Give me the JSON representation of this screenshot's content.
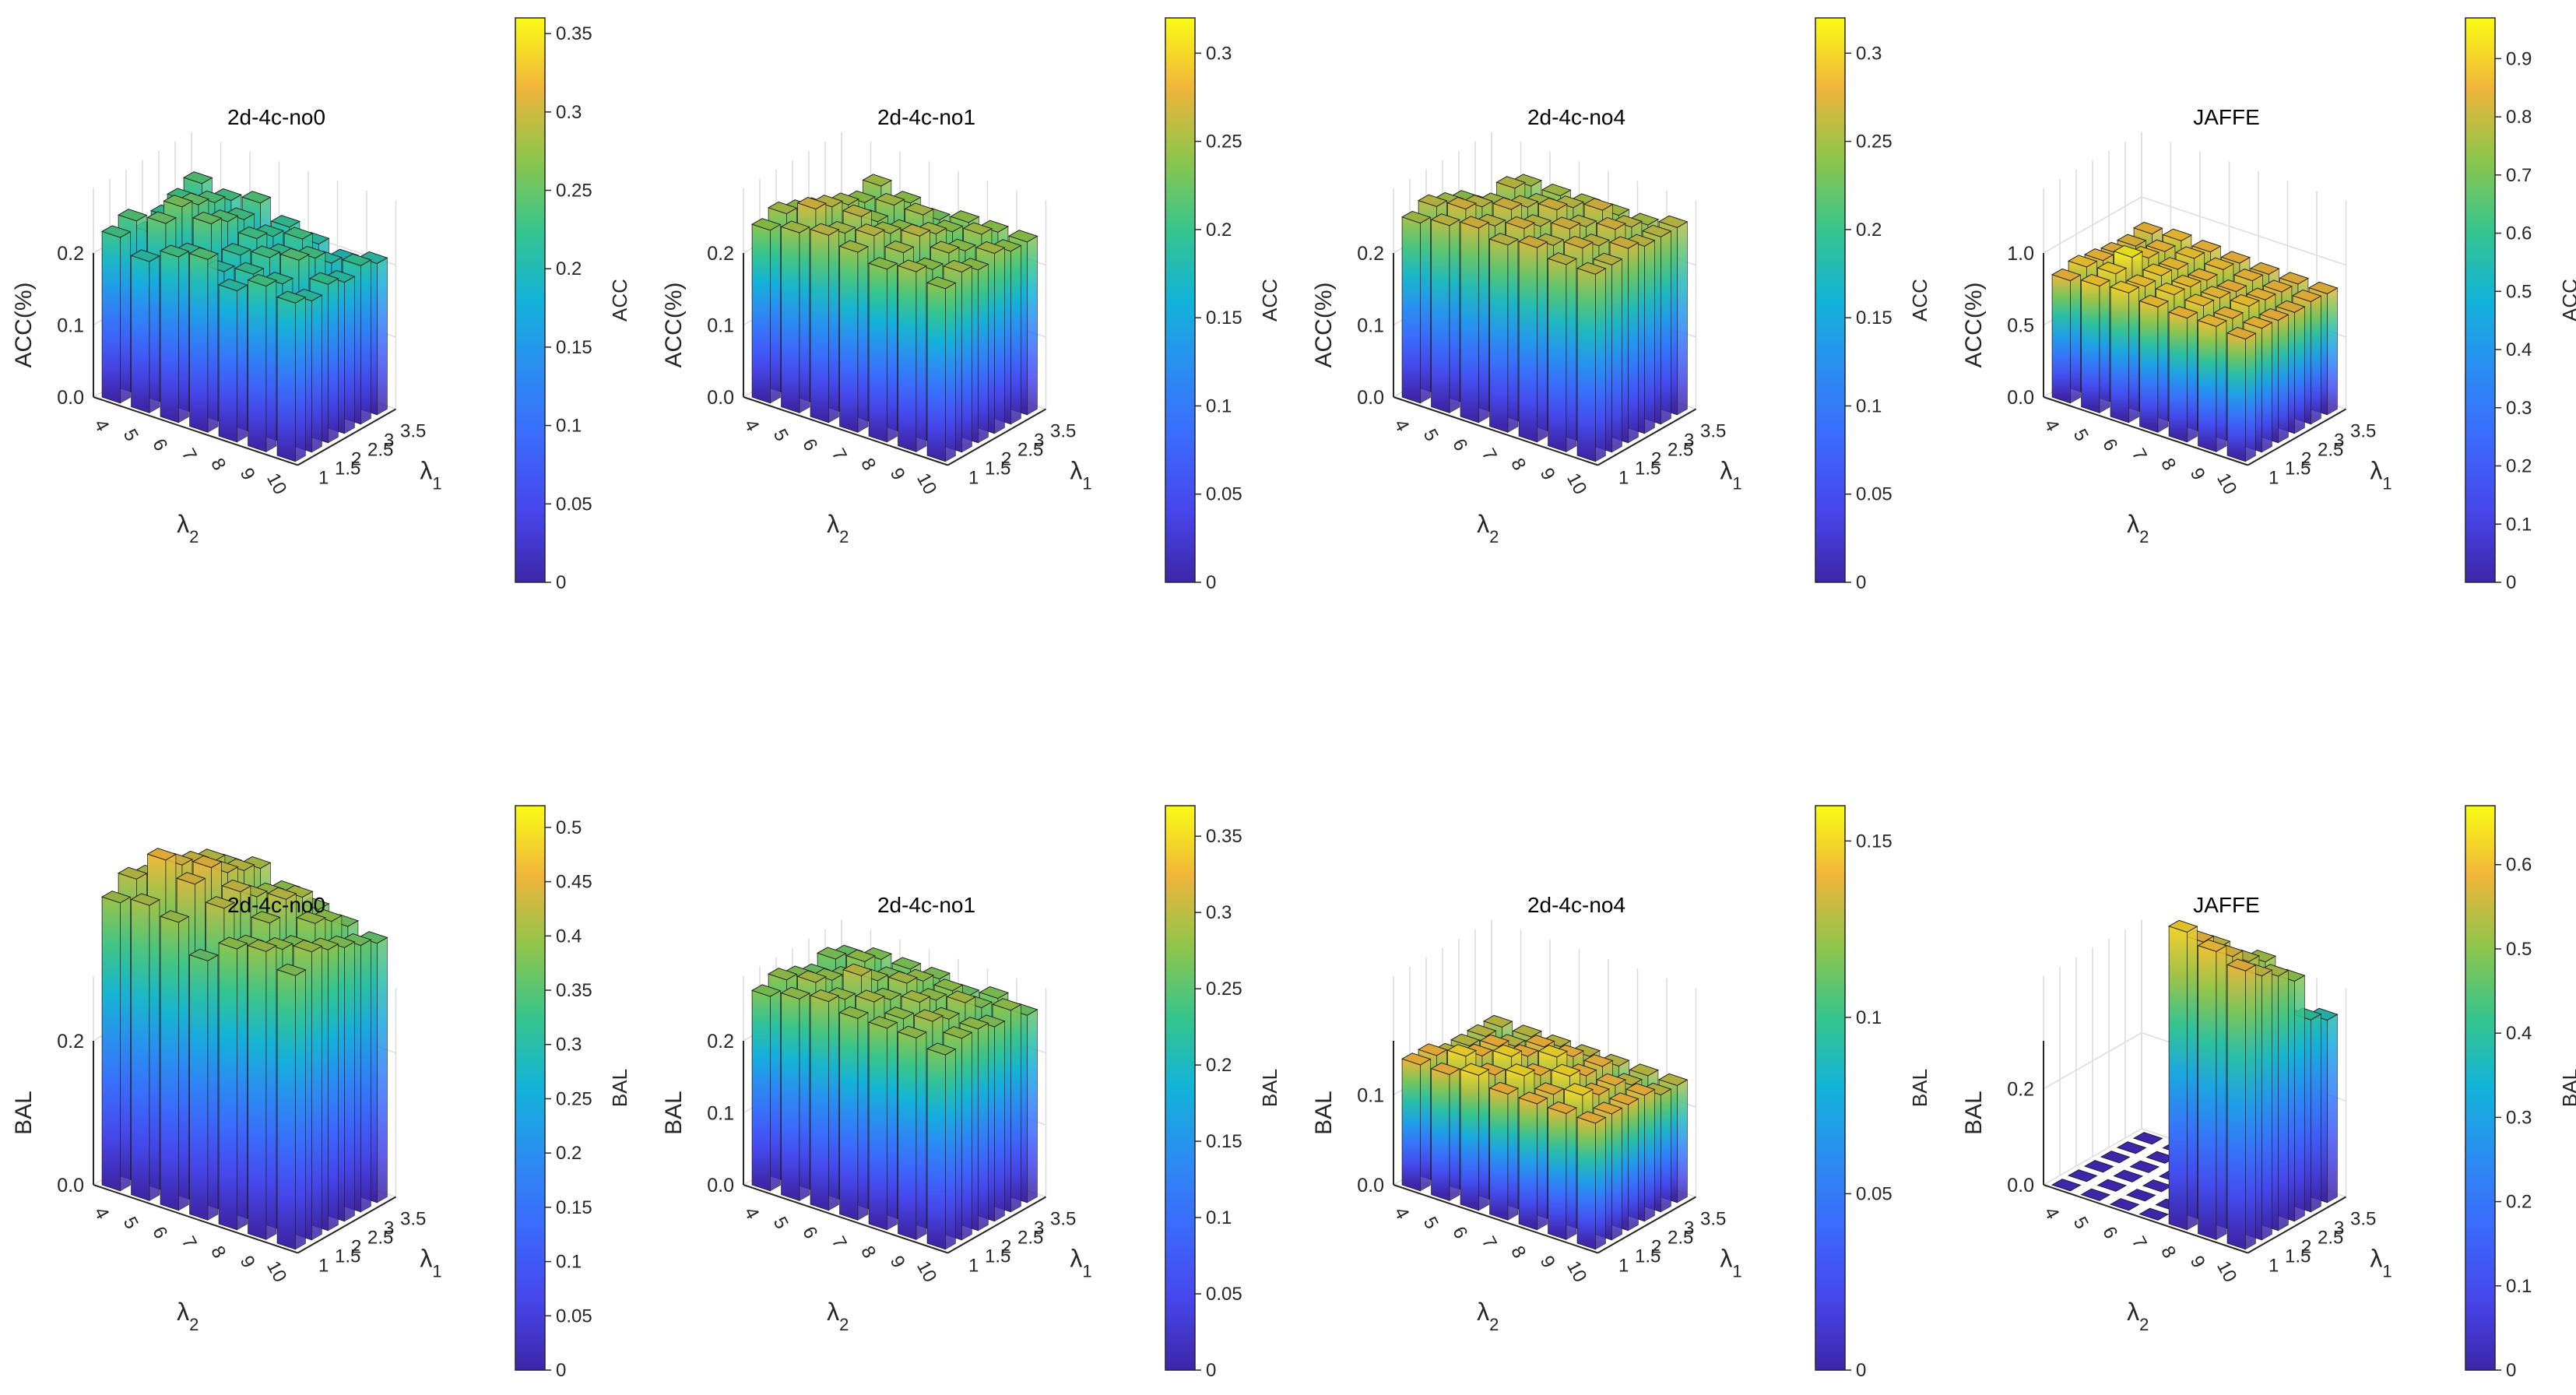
{
  "figure": {
    "lambda1_ticks": [
      "1",
      "1.5",
      "2",
      "2.5",
      "3",
      "3.5"
    ],
    "lambda2_ticks": [
      "4",
      "5",
      "6",
      "7",
      "8",
      "9",
      "10"
    ],
    "xlabel_main": "λ",
    "xlabel_sub": "2",
    "ylabel_main": "λ",
    "ylabel_sub": "1"
  },
  "chart_data": [
    {
      "type": "bar3d",
      "title": "2d-4c-no0",
      "zlabel": "ACC(%)",
      "colorbar_label": "ACC",
      "zlim": [
        0,
        0.2
      ],
      "z_ticks": [
        "0.0",
        "0.1",
        "0.2"
      ],
      "z_tick_values": [
        0,
        0.1,
        0.2
      ],
      "clim": [
        0,
        0.36
      ],
      "colorbar_ticks": [
        "0",
        "0.05",
        "0.1",
        "0.15",
        "0.2",
        "0.25",
        "0.3",
        "0.35"
      ],
      "colorbar_tick_values": [
        0,
        0.05,
        0.1,
        0.15,
        0.2,
        0.25,
        0.3,
        0.35
      ],
      "x": [
        "4",
        "5",
        "6",
        "7",
        "8",
        "9",
        "10"
      ],
      "y": [
        "1",
        "1.5",
        "2",
        "2.5",
        "3",
        "3.5"
      ],
      "values": [
        [
          0.23,
          0.24,
          0.21,
          0.22,
          0.23,
          0.24
        ],
        [
          0.21,
          0.25,
          0.26,
          0.25,
          0.24,
          0.23
        ],
        [
          0.23,
          0.22,
          0.25,
          0.24,
          0.23,
          0.24
        ],
        [
          0.24,
          0.21,
          0.22,
          0.23,
          0.22,
          0.22
        ],
        [
          0.21,
          0.22,
          0.23,
          0.22,
          0.23,
          0.21
        ],
        [
          0.23,
          0.22,
          0.24,
          0.23,
          0.21,
          0.2
        ],
        [
          0.22,
          0.21,
          0.22,
          0.21,
          0.22,
          0.21
        ]
      ]
    },
    {
      "type": "bar3d",
      "title": "2d-4c-no1",
      "zlabel": "ACC(%)",
      "colorbar_label": "ACC",
      "zlim": [
        0,
        0.2
      ],
      "z_ticks": [
        "0.0",
        "0.1",
        "0.2"
      ],
      "z_tick_values": [
        0,
        0.1,
        0.2
      ],
      "clim": [
        0,
        0.32
      ],
      "colorbar_ticks": [
        "0",
        "0.05",
        "0.1",
        "0.15",
        "0.2",
        "0.25",
        "0.3"
      ],
      "colorbar_tick_values": [
        0,
        0.05,
        0.1,
        0.15,
        0.2,
        0.25,
        0.3
      ],
      "x": [
        "4",
        "5",
        "6",
        "7",
        "8",
        "9",
        "10"
      ],
      "y": [
        "1",
        "1.5",
        "2",
        "2.5",
        "3",
        "3.5"
      ],
      "values": [
        [
          0.24,
          0.25,
          0.24,
          0.23,
          0.2,
          0.19
        ],
        [
          0.25,
          0.27,
          0.26,
          0.25,
          0.24,
          0.25
        ],
        [
          0.26,
          0.25,
          0.26,
          0.24,
          0.25,
          0.24
        ],
        [
          0.25,
          0.26,
          0.25,
          0.24,
          0.25,
          0.23
        ],
        [
          0.24,
          0.25,
          0.26,
          0.25,
          0.24,
          0.24
        ],
        [
          0.25,
          0.24,
          0.25,
          0.24,
          0.25,
          0.24
        ],
        [
          0.24,
          0.25,
          0.24,
          0.25,
          0.24,
          0.24
        ]
      ]
    },
    {
      "type": "bar3d",
      "title": "2d-4c-no4",
      "zlabel": "ACC(%)",
      "colorbar_label": "ACC",
      "zlim": [
        0,
        0.2
      ],
      "z_ticks": [
        "0.0",
        "0.1",
        "0.2"
      ],
      "z_tick_values": [
        0,
        0.1,
        0.2
      ],
      "clim": [
        0,
        0.32
      ],
      "colorbar_ticks": [
        "0",
        "0.05",
        "0.1",
        "0.15",
        "0.2",
        "0.25",
        "0.3"
      ],
      "colorbar_tick_values": [
        0,
        0.05,
        0.1,
        0.15,
        0.2,
        0.25,
        0.3
      ],
      "x": [
        "4",
        "5",
        "6",
        "7",
        "8",
        "9",
        "10"
      ],
      "y": [
        "1",
        "1.5",
        "2",
        "2.5",
        "3",
        "3.5"
      ],
      "values": [
        [
          0.25,
          0.26,
          0.25,
          0.24,
          0.22,
          0.18
        ],
        [
          0.26,
          0.27,
          0.26,
          0.25,
          0.26,
          0.25
        ],
        [
          0.27,
          0.26,
          0.27,
          0.26,
          0.25,
          0.25
        ],
        [
          0.26,
          0.27,
          0.26,
          0.27,
          0.26,
          0.25
        ],
        [
          0.27,
          0.26,
          0.27,
          0.26,
          0.27,
          0.25
        ],
        [
          0.26,
          0.27,
          0.26,
          0.27,
          0.26,
          0.25
        ],
        [
          0.26,
          0.26,
          0.27,
          0.26,
          0.26,
          0.26
        ]
      ]
    },
    {
      "type": "bar3d",
      "title": "JAFFE",
      "zlabel": "ACC(%)",
      "colorbar_label": "ACC",
      "zlim": [
        0,
        1.0
      ],
      "z_ticks": [
        "0.0",
        "0.5",
        "1.0"
      ],
      "z_tick_values": [
        0,
        0.5,
        1.0
      ],
      "clim": [
        0,
        0.97
      ],
      "colorbar_ticks": [
        "0",
        "0.1",
        "0.2",
        "0.3",
        "0.4",
        "0.5",
        "0.6",
        "0.7",
        "0.8",
        "0.9"
      ],
      "colorbar_tick_values": [
        0,
        0.1,
        0.2,
        0.3,
        0.4,
        0.5,
        0.6,
        0.7,
        0.8,
        0.9
      ],
      "x": [
        "4",
        "5",
        "6",
        "7",
        "8",
        "9",
        "10"
      ],
      "y": [
        "1",
        "1.5",
        "2",
        "2.5",
        "3",
        "3.5"
      ],
      "values": [
        [
          0.85,
          0.88,
          0.86,
          0.84,
          0.83,
          0.85
        ],
        [
          0.88,
          0.9,
          0.95,
          0.88,
          0.86,
          0.87
        ],
        [
          0.9,
          0.88,
          0.89,
          0.87,
          0.88,
          0.86
        ],
        [
          0.87,
          0.89,
          0.88,
          0.86,
          0.87,
          0.85
        ],
        [
          0.86,
          0.88,
          0.87,
          0.85,
          0.86,
          0.84
        ],
        [
          0.87,
          0.86,
          0.88,
          0.86,
          0.85,
          0.84
        ],
        [
          0.85,
          0.86,
          0.85,
          0.84,
          0.85,
          0.84
        ]
      ]
    },
    {
      "type": "bar3d",
      "title": "2d-4c-no0",
      "zlabel": "BAL",
      "colorbar_label": "BAL",
      "zlim": [
        0,
        0.2
      ],
      "z_ticks": [
        "0.0",
        "0.2"
      ],
      "z_tick_values": [
        0,
        0.2
      ],
      "clim": [
        0,
        0.52
      ],
      "colorbar_ticks": [
        "0",
        "0.05",
        "0.1",
        "0.15",
        "0.2",
        "0.25",
        "0.3",
        "0.35",
        "0.4",
        "0.45",
        "0.5"
      ],
      "colorbar_tick_values": [
        0,
        0.05,
        0.1,
        0.15,
        0.2,
        0.25,
        0.3,
        0.35,
        0.4,
        0.45,
        0.5
      ],
      "x": [
        "4",
        "5",
        "6",
        "7",
        "8",
        "9",
        "10"
      ],
      "y": [
        "1",
        "1.5",
        "2",
        "2.5",
        "3",
        "3.5"
      ],
      "values": [
        [
          0.4,
          0.42,
          0.41,
          0.4,
          0.39,
          0.38
        ],
        [
          0.41,
          0.46,
          0.44,
          0.43,
          0.42,
          0.4
        ],
        [
          0.4,
          0.44,
          0.45,
          0.43,
          0.42,
          0.41
        ],
        [
          0.36,
          0.42,
          0.43,
          0.41,
          0.4,
          0.39
        ],
        [
          0.39,
          0.38,
          0.4,
          0.42,
          0.41,
          0.38
        ],
        [
          0.4,
          0.39,
          0.38,
          0.4,
          0.39,
          0.37
        ],
        [
          0.38,
          0.4,
          0.39,
          0.38,
          0.37,
          0.36
        ]
      ]
    },
    {
      "type": "bar3d",
      "title": "2d-4c-no1",
      "zlabel": "BAL",
      "colorbar_label": "BAL",
      "zlim": [
        0,
        0.2
      ],
      "z_ticks": [
        "0.0",
        "0.1",
        "0.2"
      ],
      "z_tick_values": [
        0,
        0.1,
        0.2
      ],
      "clim": [
        0,
        0.37
      ],
      "colorbar_ticks": [
        "0",
        "0.05",
        "0.1",
        "0.15",
        "0.2",
        "0.25",
        "0.3",
        "0.35"
      ],
      "colorbar_tick_values": [
        0,
        0.05,
        0.1,
        0.15,
        0.2,
        0.25,
        0.3,
        0.35
      ],
      "x": [
        "4",
        "5",
        "6",
        "7",
        "8",
        "9",
        "10"
      ],
      "y": [
        "1",
        "1.5",
        "2",
        "2.5",
        "3",
        "3.5"
      ],
      "values": [
        [
          0.27,
          0.28,
          0.27,
          0.26,
          0.27,
          0.26
        ],
        [
          0.28,
          0.29,
          0.28,
          0.27,
          0.28,
          0.27
        ],
        [
          0.29,
          0.28,
          0.3,
          0.28,
          0.27,
          0.27
        ],
        [
          0.28,
          0.29,
          0.28,
          0.29,
          0.28,
          0.27
        ],
        [
          0.28,
          0.28,
          0.29,
          0.28,
          0.28,
          0.26
        ],
        [
          0.28,
          0.29,
          0.28,
          0.29,
          0.27,
          0.27
        ],
        [
          0.27,
          0.28,
          0.28,
          0.27,
          0.28,
          0.26
        ]
      ]
    },
    {
      "type": "bar3d",
      "title": "2d-4c-no4",
      "zlabel": "BAL",
      "colorbar_label": "BAL",
      "zlim": [
        0,
        0.16
      ],
      "z_ticks": [
        "0.0",
        "0.1"
      ],
      "z_tick_values": [
        0,
        0.1
      ],
      "clim": [
        0,
        0.16
      ],
      "colorbar_ticks": [
        "0",
        "0.05",
        "0.1",
        "0.15"
      ],
      "colorbar_tick_values": [
        0,
        0.05,
        0.1,
        0.15
      ],
      "x": [
        "4",
        "5",
        "6",
        "7",
        "8",
        "9",
        "10"
      ],
      "y": [
        "1",
        "1.5",
        "2",
        "2.5",
        "3",
        "3.5"
      ],
      "values": [
        [
          0.14,
          0.14,
          0.13,
          0.13,
          0.13,
          0.13
        ],
        [
          0.14,
          0.15,
          0.14,
          0.14,
          0.13,
          0.13
        ],
        [
          0.15,
          0.14,
          0.15,
          0.14,
          0.14,
          0.13
        ],
        [
          0.14,
          0.15,
          0.14,
          0.15,
          0.14,
          0.13
        ],
        [
          0.14,
          0.14,
          0.15,
          0.14,
          0.14,
          0.13
        ],
        [
          0.14,
          0.15,
          0.14,
          0.14,
          0.13,
          0.13
        ],
        [
          0.14,
          0.14,
          0.14,
          0.14,
          0.13,
          0.13
        ]
      ]
    },
    {
      "type": "bar3d",
      "title": "JAFFE",
      "zlabel": "BAL",
      "colorbar_label": "BAL",
      "zlim": [
        0,
        0.3
      ],
      "z_ticks": [
        "0.0",
        "0.2"
      ],
      "z_tick_values": [
        0,
        0.2
      ],
      "clim": [
        0,
        0.67
      ],
      "colorbar_ticks": [
        "0",
        "0.1",
        "0.2",
        "0.3",
        "0.4",
        "0.5",
        "0.6"
      ],
      "colorbar_tick_values": [
        0,
        0.1,
        0.2,
        0.3,
        0.4,
        0.5,
        0.6
      ],
      "x": [
        "4",
        "5",
        "6",
        "7",
        "8",
        "9",
        "10"
      ],
      "y": [
        "1",
        "1.5",
        "2",
        "2.5",
        "3",
        "3.5"
      ],
      "values": [
        [
          0,
          0,
          0,
          0,
          0,
          0
        ],
        [
          0,
          0,
          0,
          0,
          0,
          0
        ],
        [
          0,
          0,
          0,
          0,
          0,
          0
        ],
        [
          0,
          0,
          0,
          0,
          0,
          0
        ],
        [
          0.62,
          0.58,
          0.55,
          0.42,
          0,
          0
        ],
        [
          0.6,
          0.57,
          0.54,
          0.52,
          0.38,
          0.36
        ],
        [
          0.58,
          0.55,
          0.53,
          0.5,
          0.4,
          0.38
        ]
      ]
    }
  ]
}
